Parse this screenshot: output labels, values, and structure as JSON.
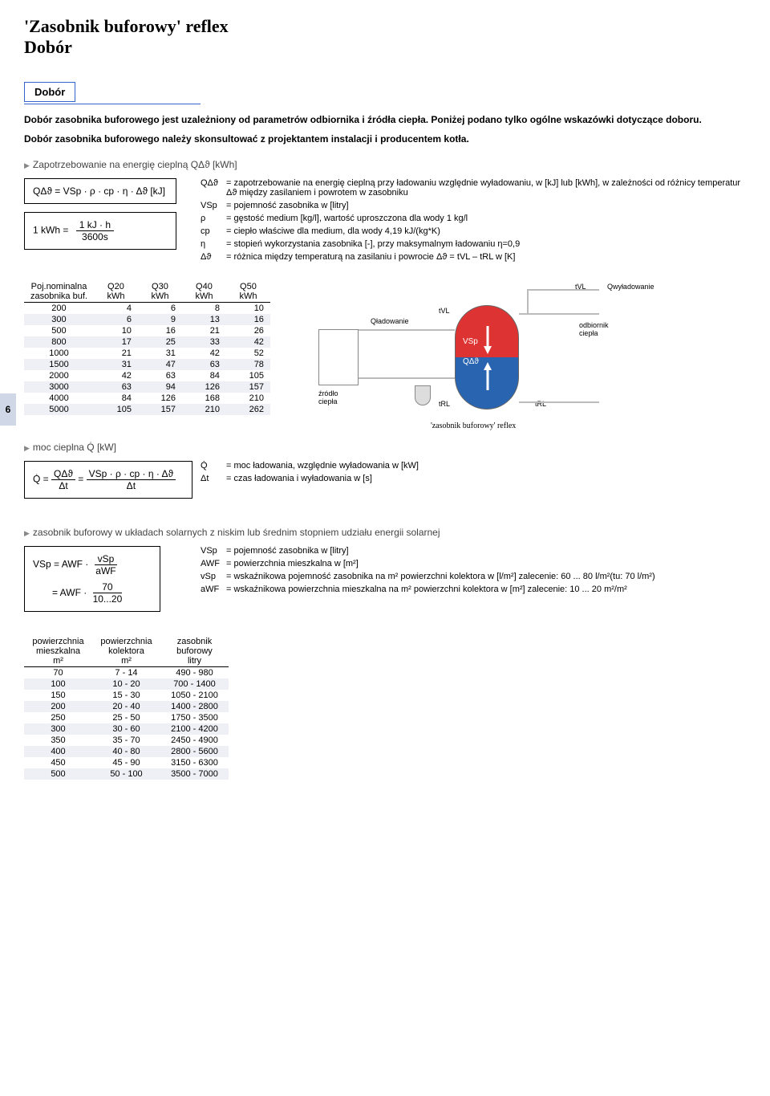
{
  "page_title": "'Zasobnik buforowy' reflex\nDobór",
  "page_number": "6",
  "section_label": "Dobór",
  "intro_line1": "Dobór zasobnika buforowego jest uzależniony od parametrów odbiornika i źródła ciepła. Poniżej podano tylko ogólne wskazówki dotyczące doboru.",
  "intro_line2": "Dobór zasobnika buforowego należy skonsultować z projektantem instalacji i producentem kotła.",
  "sec1": {
    "heading": "Zapotrzebowanie na energię cieplną QΔϑ [kWh]",
    "formula1": "QΔϑ = VSp · ρ · cp · η · Δϑ [kJ]",
    "formula2_l": "1 kWh =",
    "formula2_num": "1 kJ · h",
    "formula2_den": "3600s",
    "defs": [
      {
        "s": "QΔϑ",
        "t": "= zapotrzebowanie na energię cieplną przy ładowaniu względnie wyładowaniu, w [kJ] lub [kWh], w zależności od różnicy temperatur Δϑ między zasilaniem i powrotem w zasobniku"
      },
      {
        "s": "VSp",
        "t": "= pojemność zasobnika w [litry]"
      },
      {
        "s": "ρ",
        "t": "= gęstość medium [kg/l], wartość uproszczona dla wody 1 kg/l"
      },
      {
        "s": "cp",
        "t": "= ciepło właściwe dla medium, dla wody 4,19 kJ/(kg*K)"
      },
      {
        "s": "η",
        "t": "= stopień wykorzystania zasobnika [-], przy maksymalnym ładowaniu η=0,9"
      },
      {
        "s": "Δϑ",
        "t": "= różnica między temperaturą na zasilaniu i powrocie Δϑ = tVL – tRL w [K]"
      }
    ]
  },
  "table1": {
    "head": [
      "Poj.nominalna\nzasobnika buf.",
      "Q20\nkWh",
      "Q30\nkWh",
      "Q40\nkWh",
      "Q50\nkWh"
    ],
    "rows": [
      [
        "200",
        "4",
        "6",
        "8",
        "10"
      ],
      [
        "300",
        "6",
        "9",
        "13",
        "16"
      ],
      [
        "500",
        "10",
        "16",
        "21",
        "26"
      ],
      [
        "800",
        "17",
        "25",
        "33",
        "42"
      ],
      [
        "1000",
        "21",
        "31",
        "42",
        "52"
      ],
      [
        "1500",
        "31",
        "47",
        "63",
        "78"
      ],
      [
        "2000",
        "42",
        "63",
        "84",
        "105"
      ],
      [
        "3000",
        "63",
        "94",
        "126",
        "157"
      ],
      [
        "4000",
        "84",
        "126",
        "168",
        "210"
      ],
      [
        "5000",
        "105",
        "157",
        "210",
        "262"
      ]
    ],
    "shaded": [
      1,
      3,
      5,
      7,
      9
    ]
  },
  "diagram": {
    "q_ladowanie": "Qładowanie",
    "q_wyladowanie": "Qwyładowanie",
    "tvl": "tVL",
    "trl": "tRL",
    "vsp": "VSp",
    "qdv": "QΔϑ",
    "zrodlo": "źródło\nciepła",
    "odbiornik": "odbiornik\nciepła",
    "caption": "'zasobnik buforowy' reflex"
  },
  "sec2": {
    "heading": "moc cieplna Q̇ [kW]",
    "formula_l": "Q̇ =",
    "formula_n1": "QΔϑ",
    "formula_d1": "Δt",
    "formula_eq": " = ",
    "formula_n2": "VSp · ρ · cp · η · Δϑ",
    "formula_d2": "Δt",
    "defs": [
      {
        "s": "Q̇",
        "t": "= moc ładowania, względnie wyładowania w [kW]"
      },
      {
        "s": "Δt",
        "t": "= czas ładowania i wyładowania w [s]"
      }
    ]
  },
  "sec3": {
    "heading": "zasobnik buforowy w układach solarnych z niskim lub średnim stopniem udziału energii solarnej",
    "f_l1": "VSp = AWF ·",
    "f_n1": "vSp",
    "f_d1": "aWF",
    "f_l2": "= AWF ·",
    "f_n2": "70",
    "f_d2": "10...20",
    "defs": [
      {
        "s": "VSp",
        "t": "= pojemność zasobnika w [litry]"
      },
      {
        "s": "AWF",
        "t": "= powierzchnia mieszkalna w [m²]"
      },
      {
        "s": "vSp",
        "t": "= wskaźnikowa pojemność zasobnika na m² powierzchni kolektora w [l/m²] zalecenie: 60 ... 80 l/m²(tu: 70 l/m²)"
      },
      {
        "s": "aWF",
        "t": "= wskaźnikowa powierzchnia mieszkalna na m² powierzchni kolektora w [m²] zalecenie: 10 ... 20 m²/m²"
      }
    ]
  },
  "table3": {
    "head": [
      "powierzchnia\nmieszkalna\nm²",
      "powierzchnia\nkolektora\nm²",
      "zasobnik\nbuforowy\nlitry"
    ],
    "rows": [
      [
        "70",
        "7 - 14",
        "490 -  980"
      ],
      [
        "100",
        "10 - 20",
        "700 - 1400"
      ],
      [
        "150",
        "15 - 30",
        "1050 - 2100"
      ],
      [
        "200",
        "20 - 40",
        "1400 - 2800"
      ],
      [
        "250",
        "25 - 50",
        "1750 - 3500"
      ],
      [
        "300",
        "30 - 60",
        "2100 - 4200"
      ],
      [
        "350",
        "35 - 70",
        "2450 - 4900"
      ],
      [
        "400",
        "40 - 80",
        "2800 - 5600"
      ],
      [
        "450",
        "45 - 90",
        "3150 - 6300"
      ],
      [
        "500",
        "50 - 100",
        "3500 - 7000"
      ]
    ],
    "shaded": [
      1,
      3,
      5,
      7,
      9
    ]
  }
}
